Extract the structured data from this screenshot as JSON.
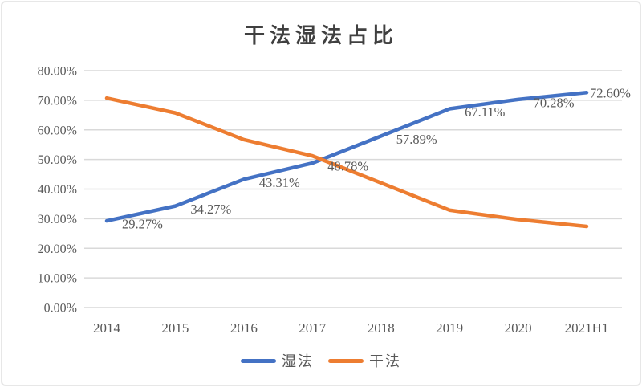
{
  "frame": {
    "border_color": "#e7e7e7",
    "background": "#ffffff"
  },
  "chart_data": {
    "type": "line",
    "title": "干法湿法占比",
    "categories": [
      "2014",
      "2015",
      "2016",
      "2017",
      "2018",
      "2019",
      "2020",
      "2021H1"
    ],
    "series": [
      {
        "name": "湿法",
        "color": "#4472C4",
        "values": [
          29.27,
          34.27,
          43.31,
          48.78,
          57.89,
          67.11,
          70.28,
          72.6
        ],
        "labels": [
          "29.27%",
          "34.27%",
          "43.31%",
          "48.78%",
          "57.89%",
          "67.11%",
          "70.28%",
          "72.60%"
        ]
      },
      {
        "name": "干法",
        "color": "#ED7D31",
        "values": [
          70.73,
          65.73,
          56.69,
          51.22,
          42.11,
          32.89,
          29.72,
          27.4
        ],
        "labels": []
      }
    ],
    "ylim": [
      0,
      80
    ],
    "ytick_step": 10,
    "yticks": [
      "0.00%",
      "10.00%",
      "20.00%",
      "30.00%",
      "40.00%",
      "50.00%",
      "60.00%",
      "70.00%",
      "80.00%"
    ],
    "grid": true,
    "legend_position": "bottom",
    "gridline_color": "#D9D9D9",
    "axis_text_color": "#595959",
    "data_label_color": "#595959",
    "title_color": "#404040"
  }
}
